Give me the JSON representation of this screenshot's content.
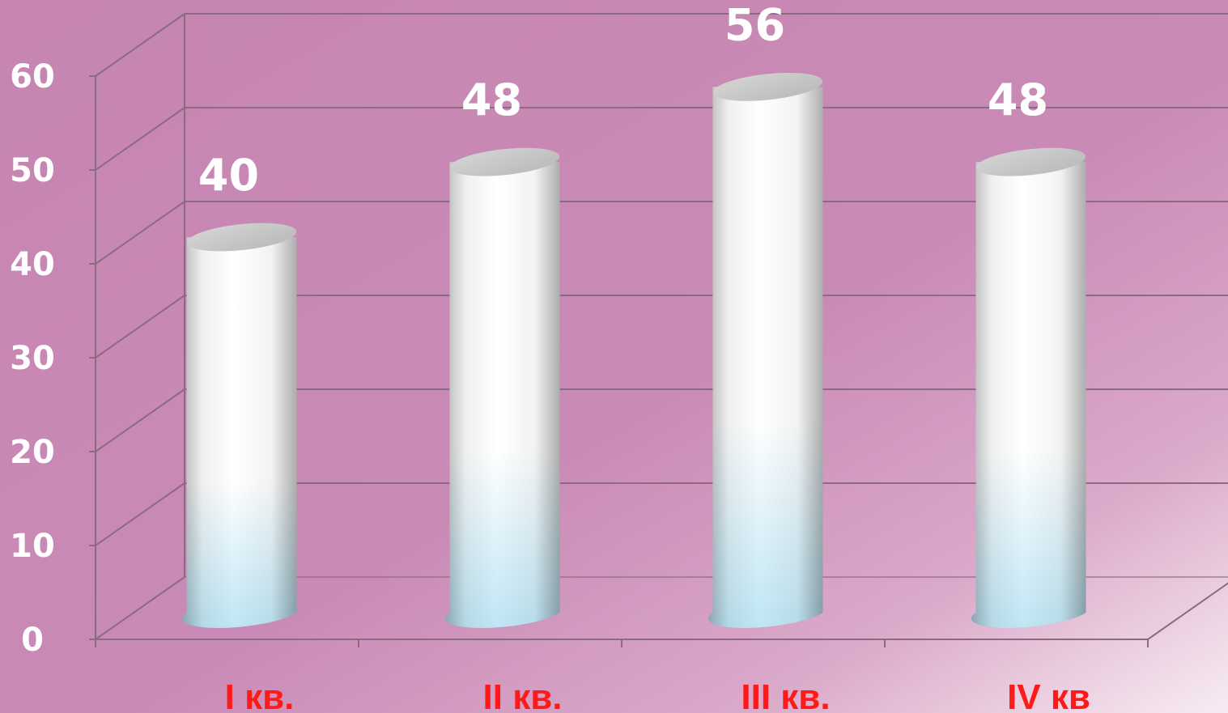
{
  "chart_data": {
    "type": "bar",
    "style": "3d-cylinder",
    "title": "",
    "xlabel": "",
    "ylabel": "",
    "categories": [
      "I кв.",
      "II кв.",
      "III кв.",
      "IV кв"
    ],
    "values": [
      40,
      48,
      56,
      48
    ],
    "ylim": [
      0,
      60
    ],
    "yticks": [
      0,
      10,
      20,
      30,
      40,
      50,
      60
    ],
    "grid": true,
    "legend": "none",
    "data_labels": true
  },
  "colors": {
    "background_start": "#c685b1",
    "background_end": "#f7ecf3",
    "gridline": "#8c6a80",
    "tick_label": "#ffffff",
    "data_label": "#ffffff",
    "category_label": "#ff1a1a",
    "cylinder_top": "#c9c9c9",
    "cylinder_body_top": "#ffffff",
    "cylinder_body_bottom": "#bfe6f5"
  }
}
